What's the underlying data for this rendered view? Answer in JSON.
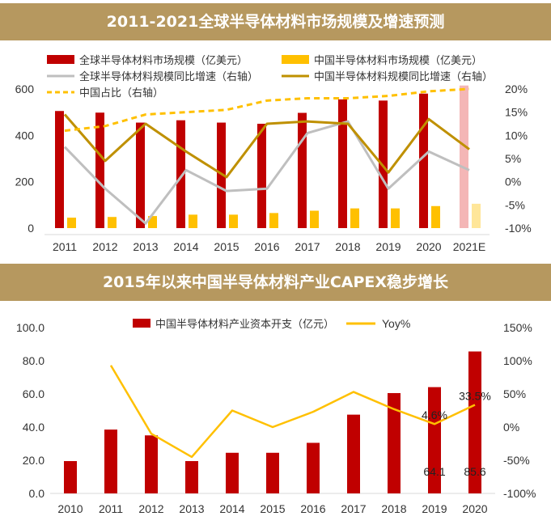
{
  "colors": {
    "header_bg": "#b6985f",
    "dark_red": "#c00000",
    "gold": "#ffc000",
    "gray": "#bfbfbf",
    "olive": "#bf9000",
    "yellow": "#ffc000",
    "forecast_pink": "#f4b6b6"
  },
  "chart_data": [
    {
      "type": "bar",
      "title": "2011-2021全球半导体材料市场规模及增速预测",
      "categories": [
        "2011",
        "2012",
        "2013",
        "2014",
        "2015",
        "2016",
        "2017",
        "2018",
        "2019",
        "2020",
        "2021E"
      ],
      "ylim": [
        0,
        600
      ],
      "y_ticks": [
        "0",
        "200",
        "400",
        "600"
      ],
      "y2lim": [
        -10,
        20
      ],
      "y2_ticks": [
        "-10%",
        "-5%",
        "0%",
        "5%",
        "10%",
        "15%",
        "20%"
      ],
      "series": [
        {
          "name": "全球半导体材料市场规模（亿美元）",
          "kind": "bar",
          "axis": "left",
          "color": "#c00000",
          "values": [
            505,
            498,
            455,
            465,
            455,
            450,
            497,
            555,
            550,
            580,
            615
          ]
        },
        {
          "name": "中国半导体材料市场规模（亿美元）",
          "kind": "bar",
          "axis": "left",
          "color": "#ffc000",
          "values": [
            45,
            48,
            52,
            58,
            58,
            65,
            75,
            85,
            85,
            95,
            105
          ]
        },
        {
          "name": "全球半导体材料规模同比增速（右轴）",
          "kind": "line",
          "axis": "right",
          "color": "#bfbfbf",
          "values": [
            7.5,
            -1.5,
            -9,
            2.5,
            -2,
            -1.5,
            10.5,
            13,
            -1.5,
            6.5,
            2.5
          ]
        },
        {
          "name": "中国半导体材料规模同比增速（右轴）",
          "kind": "line",
          "axis": "right",
          "color": "#bf9000",
          "values": [
            14.5,
            4.5,
            12.5,
            6.5,
            1,
            12.5,
            13,
            12.5,
            2,
            13.5,
            7
          ]
        },
        {
          "name": "中国占比（右轴）",
          "kind": "dashed",
          "axis": "right",
          "color": "#ffc000",
          "values": [
            11,
            12,
            14.5,
            15,
            15.5,
            17.5,
            18,
            18,
            18.5,
            19.5,
            20
          ]
        }
      ]
    },
    {
      "type": "bar",
      "title": "2015年以来中国半导体材料产业CAPEX稳步增长",
      "categories": [
        "2010",
        "2011",
        "2012",
        "2013",
        "2014",
        "2015",
        "2016",
        "2017",
        "2018",
        "2019",
        "2020"
      ],
      "ylim": [
        0,
        100
      ],
      "y_ticks": [
        "0.0",
        "20.0",
        "40.0",
        "60.0",
        "80.0",
        "100.0"
      ],
      "y2lim": [
        -100,
        150
      ],
      "y2_ticks": [
        "-100%",
        "-50%",
        "0%",
        "50%",
        "100%",
        "150%"
      ],
      "series": [
        {
          "name": "中国半导体材料产业资本开支（亿元）",
          "kind": "bar",
          "axis": "left",
          "color": "#c00000",
          "values": [
            19.5,
            38.5,
            35,
            19.5,
            24.5,
            24.5,
            30.5,
            47.5,
            60.5,
            64.1,
            85.6
          ]
        },
        {
          "name": "Yoy%",
          "kind": "line",
          "axis": "right",
          "color": "#ffc000",
          "values": [
            null,
            93,
            -10,
            -45,
            25,
            0,
            23,
            53,
            27,
            4.6,
            33.5
          ]
        }
      ],
      "data_labels": [
        {
          "series": 1,
          "index": 9,
          "text": "4.6%"
        },
        {
          "series": 1,
          "index": 10,
          "text": "33.5%"
        },
        {
          "series": 0,
          "index": 9,
          "text": "64.1"
        },
        {
          "series": 0,
          "index": 10,
          "text": "85.6"
        }
      ]
    }
  ]
}
